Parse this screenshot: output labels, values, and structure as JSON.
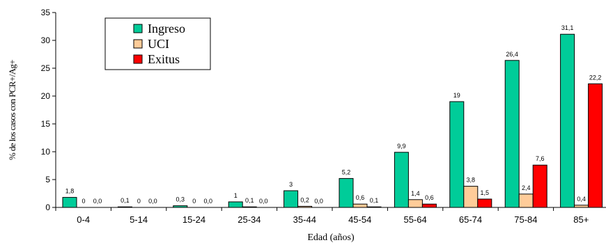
{
  "chart_data": {
    "type": "bar",
    "title": "",
    "xlabel": "Edad (años)",
    "ylabel": "% de los casos con PCR+/Ag+",
    "ylim": [
      0,
      35
    ],
    "yticks": [
      "0",
      "5",
      "10",
      "15",
      "20",
      "25",
      "30",
      "35"
    ],
    "categories": [
      "0-4",
      "5-14",
      "15-24",
      "25-34",
      "35-44",
      "45-54",
      "55-64",
      "65-74",
      "75-84",
      "85+"
    ],
    "series": [
      {
        "name": "Ingreso",
        "color": "#00CC99",
        "values": [
          1.8,
          0.1,
          0.3,
          1,
          3,
          5.2,
          9.9,
          19,
          26.4,
          31.1
        ],
        "labels": [
          "1,8",
          "0,1",
          "0,3",
          "1",
          "3",
          "5,2",
          "9,9",
          "19",
          "26,4",
          "31,1"
        ]
      },
      {
        "name": "UCI",
        "color": "#FFCC99",
        "values": [
          0,
          0,
          0,
          0.1,
          0.2,
          0.6,
          1.4,
          3.8,
          2.4,
          0.4
        ],
        "labels": [
          "0",
          "0",
          "0",
          "0,1",
          "0,2",
          "0,6",
          "1,4",
          "3,8",
          "2,4",
          "0,4"
        ]
      },
      {
        "name": "Exitus",
        "color": "#FF0000",
        "values": [
          0,
          0,
          0,
          0,
          0,
          0.1,
          0.6,
          1.5,
          7.6,
          22.2
        ],
        "labels": [
          "0,0",
          "0,0",
          "0,0",
          "0,0",
          "0,0",
          "0,1",
          "0,6",
          "1,5",
          "7,6",
          "22,2"
        ]
      }
    ],
    "legend_position": "top-left",
    "grid": false
  }
}
